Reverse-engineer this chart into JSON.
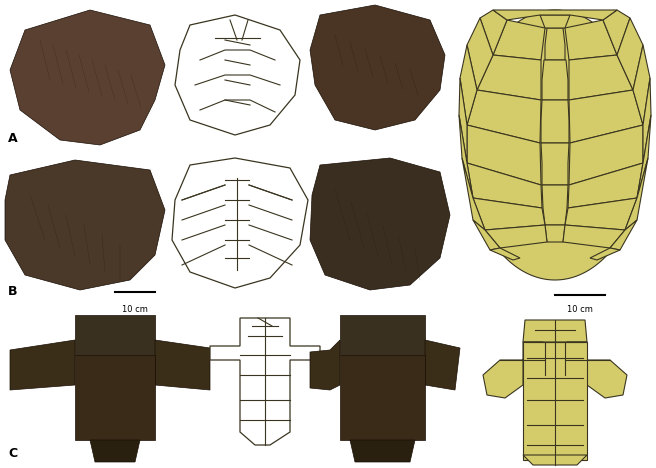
{
  "bg_color": "#ffffff",
  "carapace_color": "#d4cc6a",
  "line_color": "#3a3520",
  "photo_color_dark": "#4a3a2a",
  "photo_color_mid": "#6a5040",
  "label_A": "A",
  "label_B": "B",
  "label_C": "C",
  "scale_bar_text": "10 cm",
  "figsize": [
    6.56,
    4.68
  ],
  "dpi": 100
}
